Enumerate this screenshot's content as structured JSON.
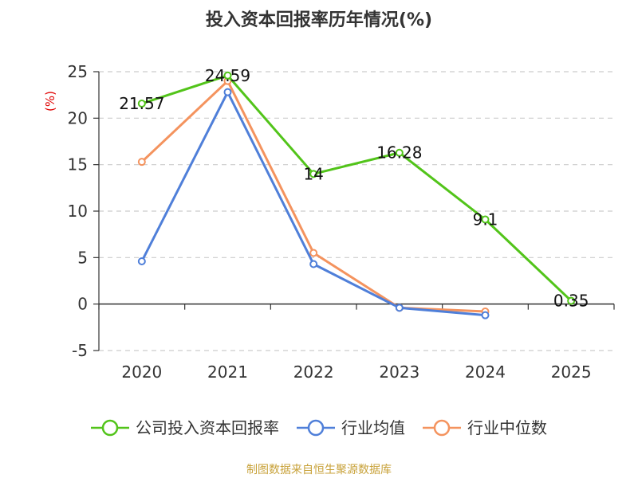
{
  "chart_data": {
    "type": "line",
    "title": "投入资本回报率历年情况(%)",
    "ylabel": "(%)",
    "xlabel": "",
    "categories": [
      "2020",
      "2021",
      "2022",
      "2023",
      "2024",
      "2025"
    ],
    "ylim": [
      -5,
      25
    ],
    "yticks": [
      25,
      20,
      15,
      10,
      5,
      0,
      -5
    ],
    "grid": "horizontal-dashed",
    "legend_position": "bottom",
    "series": [
      {
        "name": "公司投入资本回报率",
        "color": "#52c41a",
        "values": [
          21.57,
          24.59,
          14,
          16.28,
          9.1,
          0.35
        ],
        "labels": [
          "21.57",
          "24.59",
          "14",
          "16.28",
          "9.1",
          "0.35"
        ]
      },
      {
        "name": "行业均值",
        "color": "#4f7fd9",
        "values": [
          4.6,
          22.8,
          4.3,
          -0.4,
          -1.2,
          null
        ]
      },
      {
        "name": "行业中位数",
        "color": "#f4935e",
        "values": [
          15.3,
          24.0,
          5.5,
          -0.4,
          -0.8,
          null
        ]
      }
    ]
  },
  "footer": {
    "source": "制图数据来自恒生聚源数据库"
  }
}
